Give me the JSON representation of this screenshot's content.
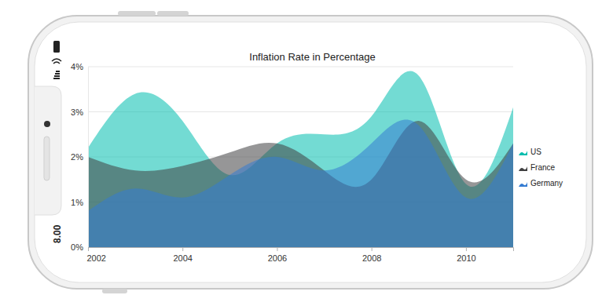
{
  "chart_data": {
    "type": "spline_area",
    "title": "Inflation Rate in Percentage",
    "x": [
      2002,
      2003,
      2004,
      2005,
      2006,
      2007,
      2008,
      2009,
      2010,
      2011
    ],
    "series": [
      {
        "name": "US",
        "color": "#00bdae",
        "values": [
          2.2,
          3.4,
          2.8,
          1.6,
          2.3,
          2.5,
          2.9,
          3.8,
          1.4,
          3.1
        ]
      },
      {
        "name": "France",
        "color": "#404041",
        "values": [
          2.0,
          1.7,
          1.8,
          2.1,
          2.3,
          1.7,
          1.5,
          2.8,
          1.5,
          2.3
        ]
      },
      {
        "name": "Germany",
        "color": "#357cd2",
        "values": [
          0.8,
          1.3,
          1.1,
          1.6,
          2.0,
          1.7,
          2.3,
          2.7,
          1.1,
          2.3
        ]
      }
    ],
    "xlim": [
      2002,
      2011
    ],
    "xticks": [
      2002,
      2004,
      2006,
      2008,
      2010
    ],
    "ylim": [
      0,
      4
    ],
    "yticks": [
      {
        "value": 0,
        "label": "0%"
      },
      {
        "value": 1,
        "label": "1%"
      },
      {
        "value": 2,
        "label": "2%"
      },
      {
        "value": 3,
        "label": "3%"
      },
      {
        "value": 4,
        "label": "4%"
      }
    ],
    "grid": true,
    "legend": "right"
  },
  "device": {
    "time": "8.00"
  }
}
